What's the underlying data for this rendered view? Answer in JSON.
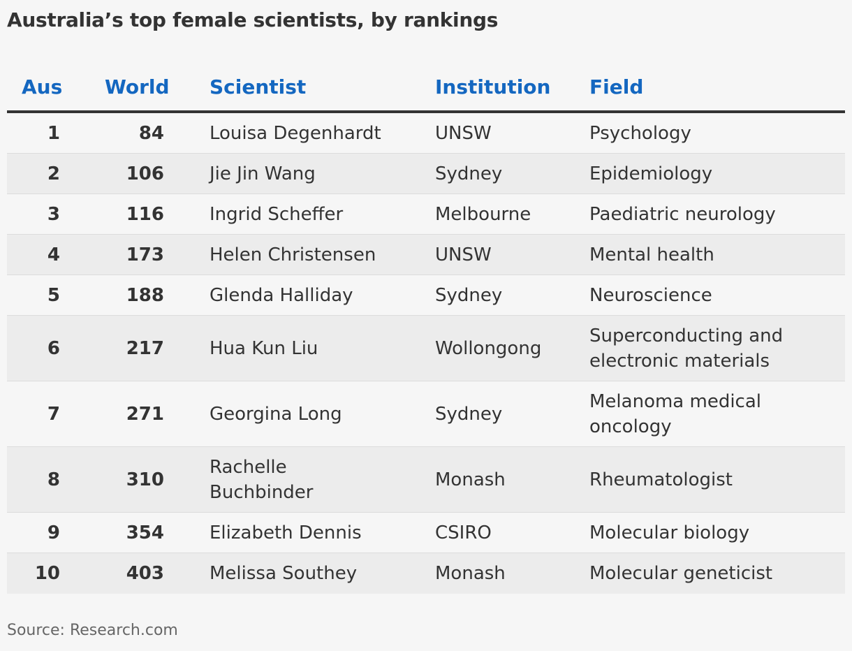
{
  "title": "Australia’s top female scientists, by rankings",
  "columns": {
    "aus": "Aus",
    "world": "World",
    "scientist": "Scientist",
    "institution": "Institution",
    "field": "Field"
  },
  "rows": [
    {
      "aus": "1",
      "world": "84",
      "scientist": "Louisa Degenhardt",
      "institution": "UNSW",
      "field": "Psychology"
    },
    {
      "aus": "2",
      "world": "106",
      "scientist": "Jie Jin Wang",
      "institution": "Sydney",
      "field": "Epidemiology"
    },
    {
      "aus": "3",
      "world": "116",
      "scientist": "Ingrid Scheffer",
      "institution": "Melbourne",
      "field": "Paediatric neurology"
    },
    {
      "aus": "4",
      "world": "173",
      "scientist": "Helen Christensen",
      "institution": "UNSW",
      "field": "Mental health"
    },
    {
      "aus": "5",
      "world": "188",
      "scientist": "Glenda Halliday",
      "institution": "Sydney",
      "field": "Neuroscience"
    },
    {
      "aus": "6",
      "world": "217",
      "scientist": "Hua Kun Liu",
      "institution": "Wollongong",
      "field": "Superconducting and electronic materials"
    },
    {
      "aus": "7",
      "world": "271",
      "scientist": "Georgina Long",
      "institution": "Sydney",
      "field": "Melanoma medical oncology"
    },
    {
      "aus": "8",
      "world": "310",
      "scientist": "Rachelle Buchbinder",
      "institution": "Monash",
      "field": "Rheumatologist"
    },
    {
      "aus": "9",
      "world": "354",
      "scientist": "Elizabeth Dennis",
      "institution": "CSIRO",
      "field": "Molecular biology"
    },
    {
      "aus": "10",
      "world": "403",
      "scientist": "Melissa Southey",
      "institution": "Monash",
      "field": "Molecular geneticist"
    }
  ],
  "source": "Source: Research.com",
  "colors": {
    "header_text": "#1467c0",
    "body_text": "#333333",
    "alt_row": "#ececec",
    "background": "#f6f6f6"
  }
}
